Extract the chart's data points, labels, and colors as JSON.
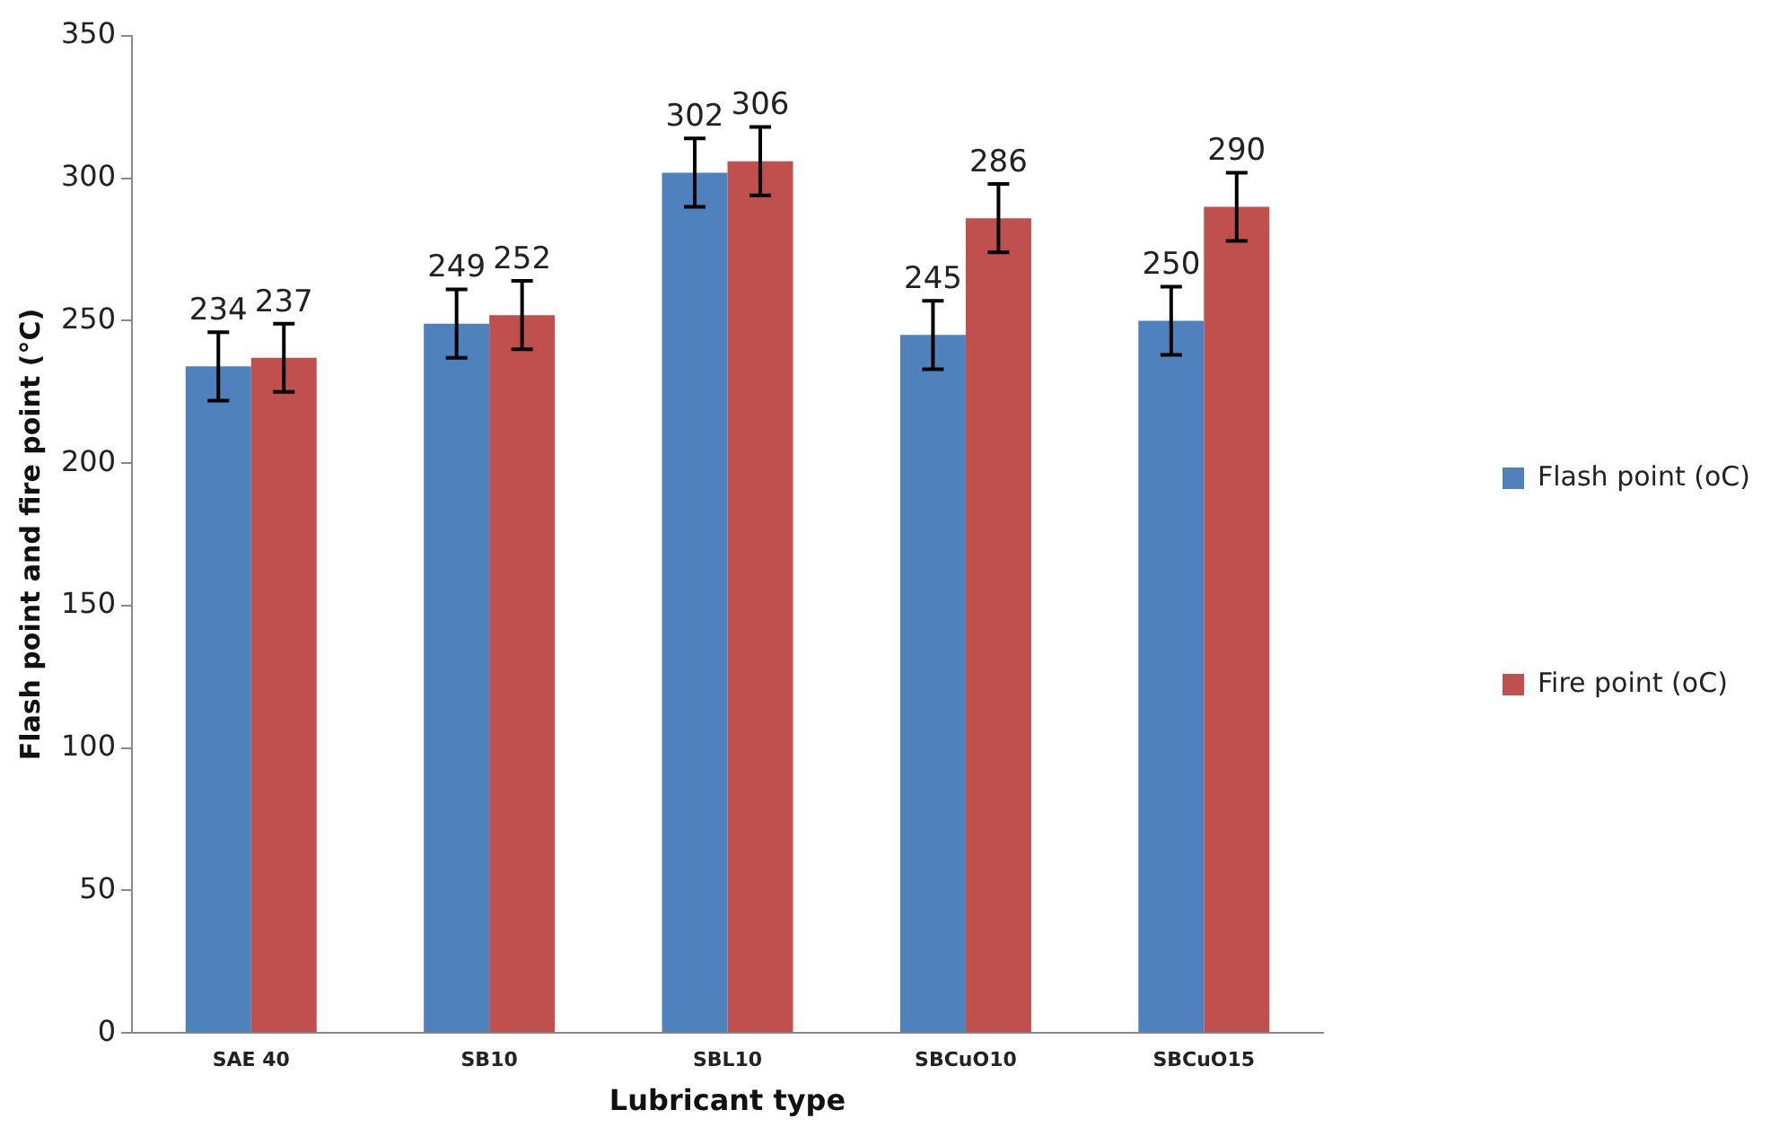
{
  "chart_data": {
    "type": "bar",
    "xlabel": "Lubricant type",
    "ylabel": "Flash point and fire point (°C)",
    "categories": [
      "SAE 40",
      "SB10",
      "SBL10",
      "SBCuO10",
      "SBCuO15"
    ],
    "series": [
      {
        "name": "Flash point (oC)",
        "color": "#4f81bd",
        "values": [
          234,
          249,
          302,
          245,
          250
        ],
        "errors": [
          12,
          12,
          12,
          12,
          12
        ]
      },
      {
        "name": "Fire point (oC)",
        "color": "#c0504d",
        "values": [
          237,
          252,
          306,
          286,
          290
        ],
        "errors": [
          12,
          12,
          12,
          12,
          12
        ]
      }
    ],
    "ylim": [
      0,
      350
    ],
    "yticks": [
      0,
      50,
      100,
      150,
      200,
      250,
      300,
      350
    ],
    "grid": false,
    "legend": "right",
    "data_labels": true
  }
}
